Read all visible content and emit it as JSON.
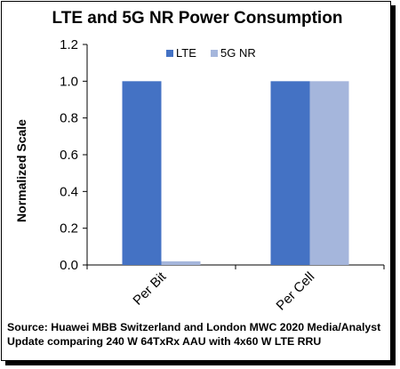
{
  "chart_data": {
    "type": "bar",
    "title": "LTE and 5G NR Power Consumption",
    "xlabel": "",
    "ylabel": "Normalized Scale",
    "categories": [
      "Per Bit",
      "Per Cell"
    ],
    "series": [
      {
        "name": "LTE",
        "values": [
          1.0,
          1.0
        ],
        "color": "#4472c4"
      },
      {
        "name": "5G NR",
        "values": [
          0.02,
          1.0
        ],
        "color": "#a5b6dc"
      }
    ],
    "ylim": [
      0,
      1.2
    ],
    "yticks": [
      "0.0",
      "0.2",
      "0.4",
      "0.6",
      "0.8",
      "1.0",
      "1.2"
    ],
    "grid": false,
    "legend_position": "top-center",
    "source": "Source: Huawei MBB Switzerland and London MWC 2020 Media/Analyst Update comparing 240 W 64TxRx AAU with 4x60 W LTE RRU"
  }
}
